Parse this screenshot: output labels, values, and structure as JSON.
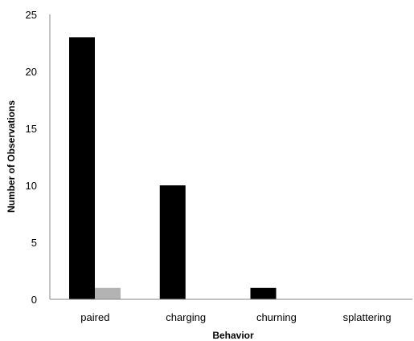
{
  "chart_data": {
    "type": "bar",
    "title": "",
    "xlabel": "Behavior",
    "ylabel": "Number of Observations",
    "categories": [
      "paired",
      "charging",
      "churning",
      "splattering"
    ],
    "series": [
      {
        "values": [
          23,
          10,
          1,
          0
        ],
        "color": "#000000"
      },
      {
        "values": [
          1,
          0,
          0,
          0
        ],
        "color": "#b3b3b3"
      }
    ],
    "ylim": [
      0,
      25
    ],
    "yticks": [
      0,
      5,
      10,
      15,
      20,
      25
    ],
    "grid": false,
    "legend": "none"
  }
}
